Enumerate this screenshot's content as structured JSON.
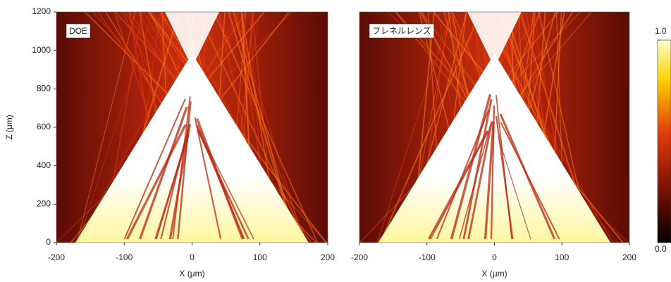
{
  "chart_data": [
    {
      "type": "heatmap",
      "label": "DOE",
      "xlabel": "X (μm)",
      "ylabel": "Z (μm)",
      "xlim": [
        -200,
        200
      ],
      "ylim": [
        0,
        1200
      ],
      "xticks": [
        -200,
        -100,
        0,
        100,
        200
      ],
      "yticks": [
        0,
        200,
        400,
        600,
        800,
        1000,
        1200
      ]
    },
    {
      "type": "heatmap",
      "label": "フレネルレンズ",
      "xlabel": "X (μm)",
      "xlim": [
        -200,
        200
      ],
      "ylim": [
        0,
        1200
      ],
      "xticks": [
        -200,
        -100,
        0,
        100,
        200
      ]
    },
    {
      "type": "colorbar",
      "ylim": [
        0,
        1
      ],
      "yticks": [
        {
          "value": 0,
          "label": "0.0"
        },
        {
          "value": 1,
          "label": "1.0"
        }
      ]
    }
  ]
}
